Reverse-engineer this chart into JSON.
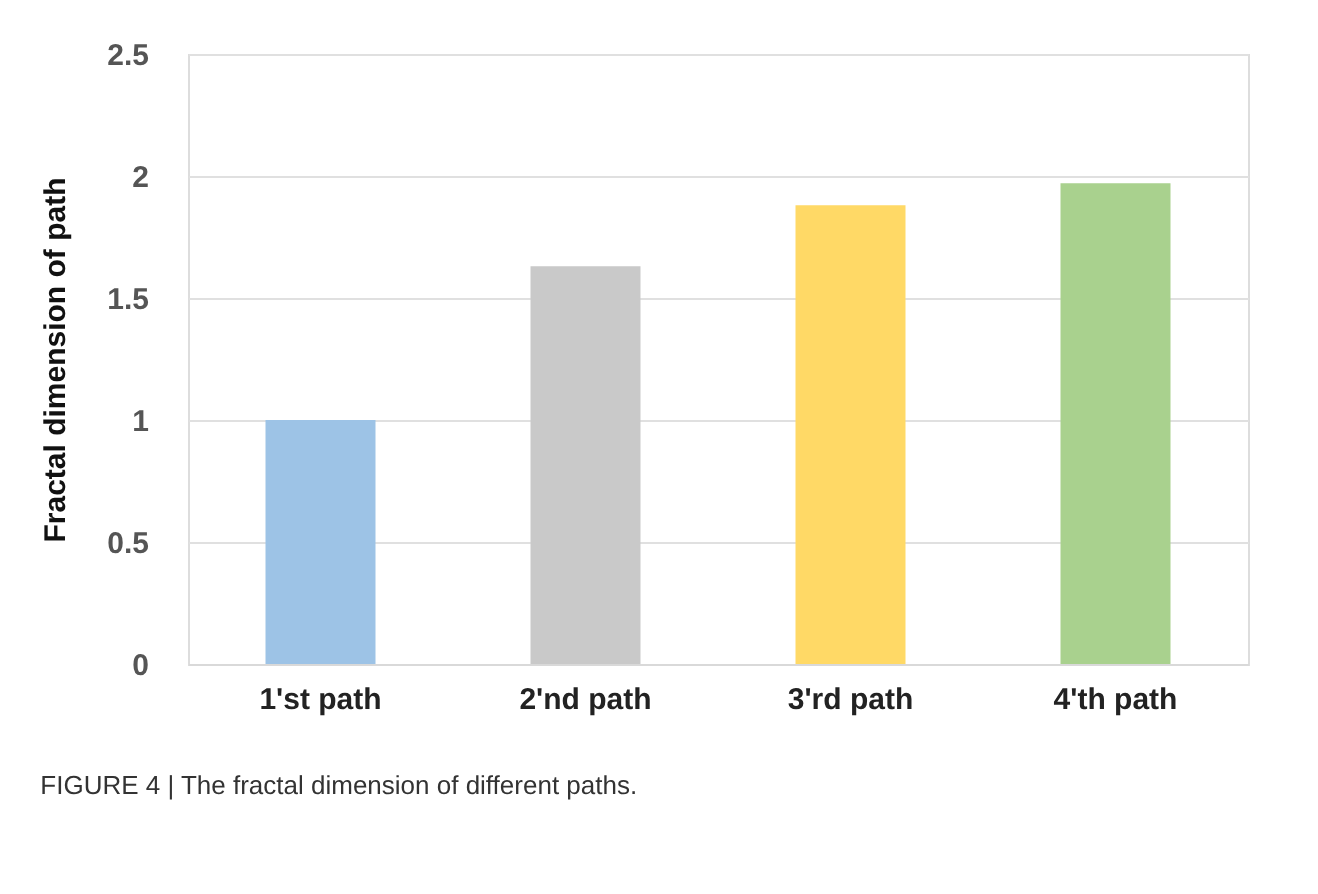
{
  "chart_data": {
    "type": "bar",
    "categories": [
      "1'st path",
      "2'nd path",
      "3'rd path",
      "4'th path"
    ],
    "values": [
      1.0,
      1.63,
      1.88,
      1.97
    ],
    "colors": [
      "#9dc3e6",
      "#c9c9c9",
      "#ffd966",
      "#a9d18e"
    ],
    "ylabel": "Fractal dimension of path",
    "ylim": [
      0,
      2.5
    ],
    "yticks": [
      0,
      0.5,
      1,
      1.5,
      2,
      2.5
    ],
    "grid": "y",
    "annotations": [
      "FIGURE 4 | The fractal dimension of different paths."
    ]
  }
}
